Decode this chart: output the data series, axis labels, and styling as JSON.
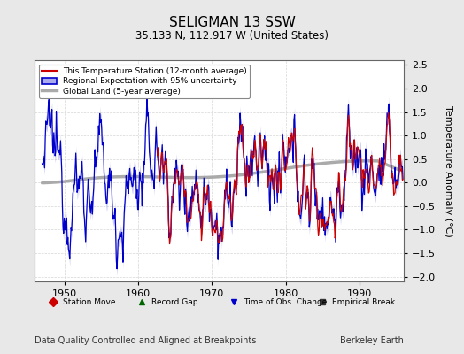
{
  "title": "SELIGMAN 13 SSW",
  "subtitle": "35.133 N, 112.917 W (United States)",
  "xlabel_bottom": "Data Quality Controlled and Aligned at Breakpoints",
  "xlabel_right": "Berkeley Earth",
  "ylabel": "Temperature Anomaly (°C)",
  "xlim": [
    1946,
    1996
  ],
  "ylim": [
    -2.1,
    2.6
  ],
  "yticks": [
    -2,
    -1.5,
    -1,
    -0.5,
    0,
    0.5,
    1,
    1.5,
    2,
    2.5
  ],
  "xticks": [
    1950,
    1960,
    1970,
    1980,
    1990
  ],
  "background_color": "#e8e8e8",
  "plot_background": "#ffffff",
  "grid_color": "#cccccc",
  "station_line_color": "#cc0000",
  "regional_line_color": "#0000cc",
  "regional_fill_color": "#aaaaee",
  "global_line_color": "#aaaaaa",
  "legend_items": [
    {
      "label": "This Temperature Station (12-month average)",
      "color": "#cc0000",
      "lw": 1.5
    },
    {
      "label": "Regional Expectation with 95% uncertainty",
      "color": "#0000cc",
      "lw": 1.5
    },
    {
      "label": "Global Land (5-year average)",
      "color": "#aaaaaa",
      "lw": 2.5
    }
  ],
  "bottom_legend_items": [
    {
      "label": "Station Move",
      "marker": "D",
      "color": "#cc0000"
    },
    {
      "label": "Record Gap",
      "marker": "^",
      "color": "#006600"
    },
    {
      "label": "Time of Obs. Change",
      "marker": "v",
      "color": "#0000cc"
    },
    {
      "label": "Empirical Break",
      "marker": "s",
      "color": "#333333"
    }
  ]
}
